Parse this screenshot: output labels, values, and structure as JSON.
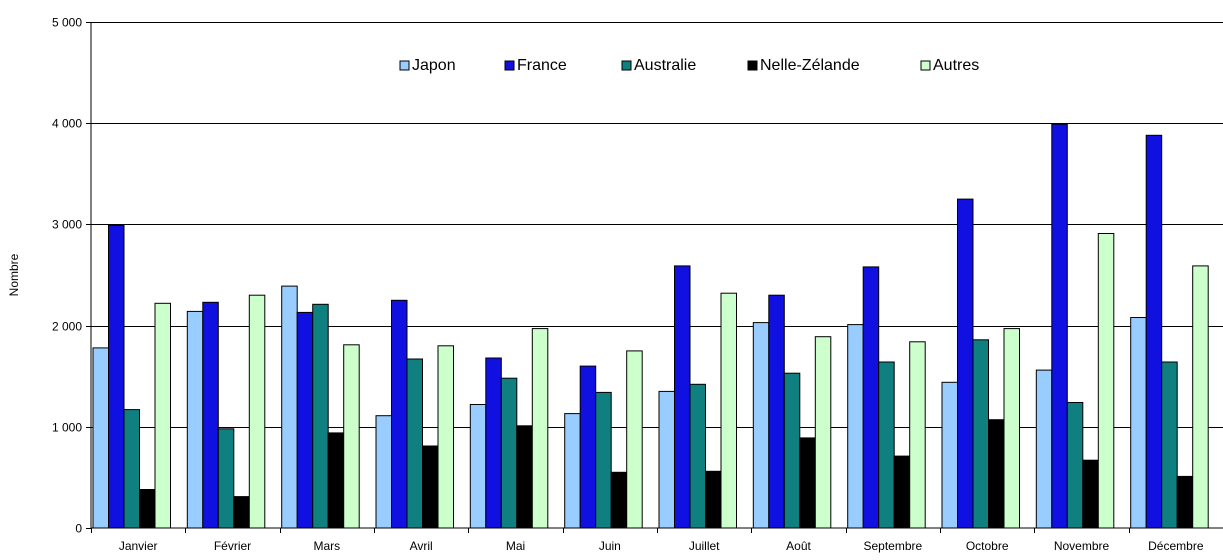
{
  "chart_data": {
    "type": "bar",
    "title": "",
    "xlabel": "",
    "ylabel": "Nombre",
    "ylim": [
      0,
      5000
    ],
    "yticks": [
      0,
      1000,
      2000,
      3000,
      4000,
      5000
    ],
    "ytick_labels": [
      "0",
      "1 000",
      "2 000",
      "3 000",
      "4 000",
      "5 000"
    ],
    "grid": true,
    "legend_position": "top",
    "categories": [
      "Janvier",
      "Février",
      "Mars",
      "Avril",
      "Mai",
      "Juin",
      "Juillet",
      "Août",
      "Septembre",
      "Octobre",
      "Novembre",
      "Décembre"
    ],
    "series": [
      {
        "name": "Japon",
        "color": "#99ccff",
        "values": [
          1780,
          2140,
          2390,
          1110,
          1220,
          1130,
          1350,
          2030,
          2010,
          1440,
          1560,
          2080
        ]
      },
      {
        "name": "France",
        "color": "#1010e0",
        "values": [
          2990,
          2230,
          2130,
          2250,
          1680,
          1600,
          2590,
          2300,
          2580,
          3250,
          3990,
          3880
        ]
      },
      {
        "name": "Australie",
        "color": "#0f7f7f",
        "values": [
          1170,
          980,
          2210,
          1670,
          1480,
          1340,
          1420,
          1530,
          1640,
          1860,
          1240,
          1640
        ]
      },
      {
        "name": "Nelle-Zélande",
        "color": "#000000",
        "values": [
          380,
          310,
          940,
          810,
          1010,
          550,
          560,
          890,
          710,
          1070,
          670,
          510
        ]
      },
      {
        "name": "Autres",
        "color": "#ccffcc",
        "values": [
          2220,
          2300,
          1810,
          1800,
          1970,
          1750,
          2320,
          1890,
          1840,
          1970,
          2910,
          2590
        ]
      }
    ]
  }
}
